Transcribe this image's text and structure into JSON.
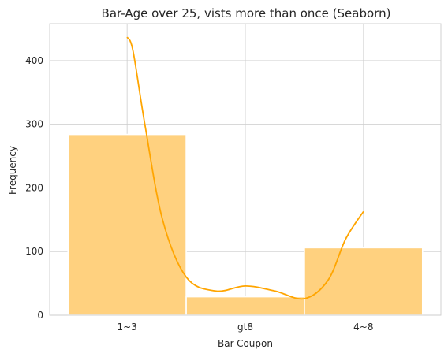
{
  "chart_data": {
    "type": "bar",
    "title": "Bar-Age over 25, vists more than once (Seaborn)",
    "xlabel": "Bar-Coupon",
    "ylabel": "Frequency",
    "categories": [
      "1~3",
      "gt8",
      "4~8"
    ],
    "values": [
      284,
      29,
      106
    ],
    "ylim": [
      0,
      458
    ],
    "yticks": [
      0,
      100,
      200,
      300,
      400
    ],
    "grid": true,
    "kde": {
      "x": [
        0,
        0.05,
        0.15,
        0.3,
        0.5,
        0.75,
        1.0,
        1.25,
        1.5,
        1.7,
        1.85,
        2.0
      ],
      "y": [
        437,
        415,
        300,
        150,
        60,
        38,
        46,
        38,
        26,
        55,
        120,
        163
      ]
    },
    "colors": {
      "bar_fill": "#ffd17f",
      "bar_edge": "#ffffff",
      "kde_line": "#ffa500",
      "grid": "#cccccc",
      "axis": "#cccccc",
      "text": "#262626"
    }
  }
}
